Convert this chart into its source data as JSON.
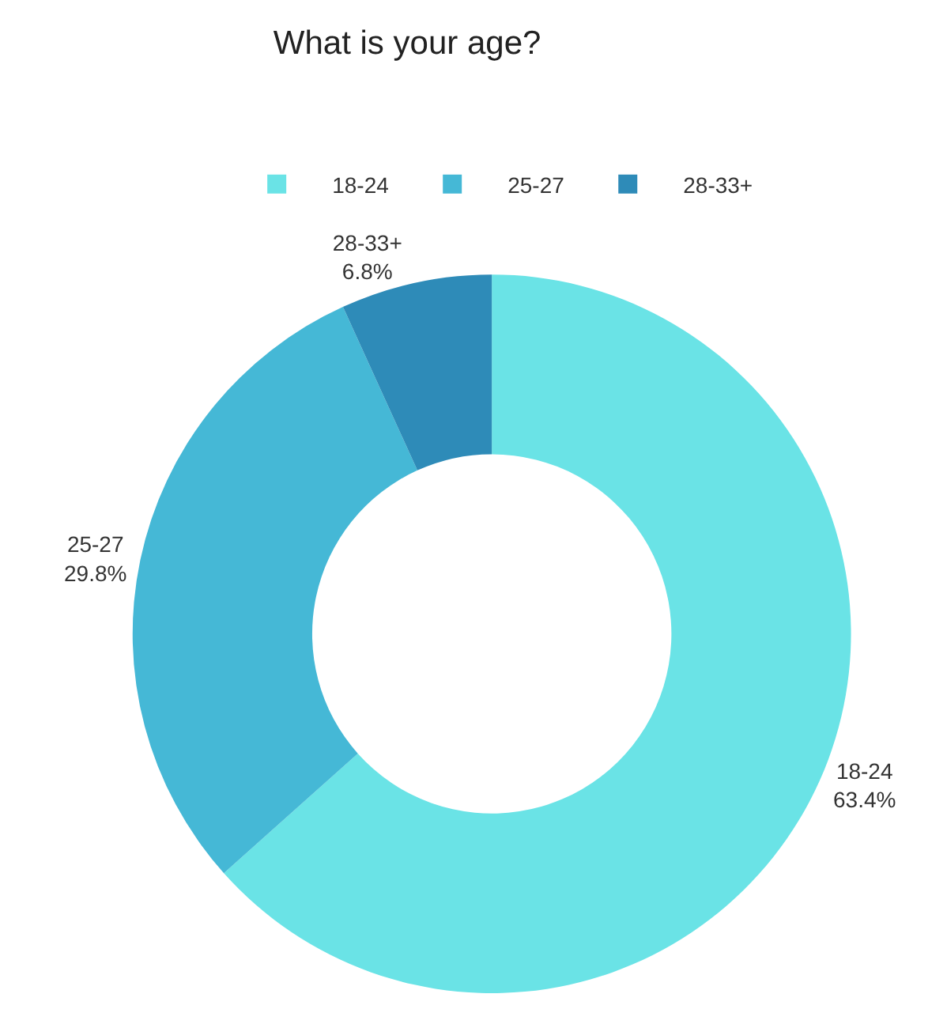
{
  "chart_data": {
    "type": "donut",
    "title": "What is your age?",
    "categories": [
      "18-24",
      "25-27",
      "28-33+"
    ],
    "values": [
      63.4,
      29.8,
      6.8
    ],
    "value_labels": [
      "63.4%",
      "29.8%",
      "6.8%"
    ],
    "colors": [
      "#6ae3e6",
      "#45b8d6",
      "#2e8bb8"
    ],
    "legend": "top"
  }
}
